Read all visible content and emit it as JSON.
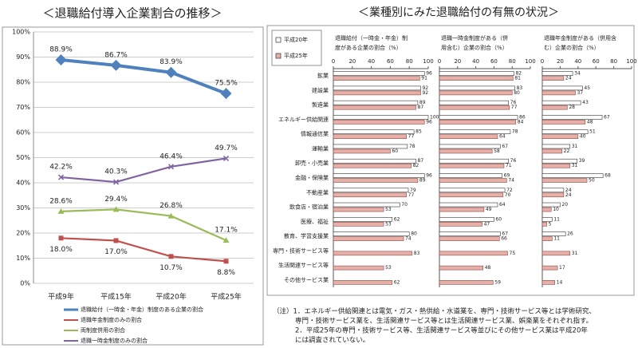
{
  "chart_data": [
    {
      "type": "line",
      "title": "＜退職給付導入企業割合の推移＞",
      "categories": [
        "平成9年",
        "平成15年",
        "平成20年",
        "平成25年"
      ],
      "ylim": [
        0,
        100
      ],
      "yticks": [
        {
          "value": 0,
          "label": "0%"
        },
        {
          "value": 10,
          "label": "10%"
        },
        {
          "value": 20,
          "label": "20%"
        },
        {
          "value": 30,
          "label": "30%"
        },
        {
          "value": 40,
          "label": "40%"
        },
        {
          "value": 50,
          "label": "50%"
        },
        {
          "value": 60,
          "label": "60%"
        },
        {
          "value": 70,
          "label": "70%"
        },
        {
          "value": 80,
          "label": "80%"
        },
        {
          "value": 90,
          "label": "90%"
        },
        {
          "value": 100,
          "label": "100%"
        }
      ],
      "grid": true,
      "series": [
        {
          "name": "退職給付（一時金・年金）制度のある企業の割合",
          "color": "#4f81bd",
          "values": [
            88.9,
            86.7,
            83.9,
            75.5
          ],
          "value_labels": [
            "88.9%",
            "86.7%",
            "83.9%",
            "75.5%"
          ]
        },
        {
          "name": "退職年金制度のみの割合",
          "color": "#c0504d",
          "values": [
            18.0,
            17.0,
            10.7,
            8.8
          ],
          "value_labels": [
            "18.0%",
            "17.0%",
            "10.7%",
            "8.8%"
          ]
        },
        {
          "name": "両制度併用の割合",
          "color": "#9bbb59",
          "values": [
            28.6,
            29.4,
            26.8,
            17.1
          ],
          "value_labels": [
            "28.6%",
            "29.4%",
            "26.8%",
            "17.1%"
          ]
        },
        {
          "name": "退職一時金制度のみの割合",
          "color": "#8064a2",
          "values": [
            42.2,
            40.3,
            46.4,
            49.7
          ],
          "value_labels": [
            "42.2%",
            "40.3%",
            "46.4%",
            "49.7%"
          ]
        }
      ]
    },
    {
      "type": "barh",
      "title": "＜業種別にみた退職給付の有無の状況＞",
      "categories": [
        "鉱業",
        "建設業",
        "製造業",
        "エネルギー供給関連",
        "情報通信業",
        "運輸業",
        "卸売・小売業",
        "金融・保険業",
        "不動産業",
        "飲食店・宿泊業",
        "医療、福祉",
        "教育、学習支援業",
        "専門・技術サービス等",
        "生活関連サービス等",
        "その他サービス業"
      ],
      "xlim": [
        0,
        100
      ],
      "xticks": [
        0,
        20,
        40,
        60,
        80,
        100
      ],
      "legend": [
        {
          "name": "平成20年",
          "color": "#ffffff"
        },
        {
          "name": "平成25年",
          "color": "#e6b0a8"
        }
      ],
      "panels": [
        {
          "subtitle": [
            "退職給付（一時金・年金）制",
            "度がある企業の割合（%）"
          ],
          "series": [
            {
              "values": [
                96,
                92,
                89,
                100,
                85,
                78,
                87,
                96,
                79,
                70,
                62,
                80,
                null,
                null,
                null
              ]
            },
            {
              "values": [
                91,
                92,
                87,
                96,
                77,
                60,
                82,
                89,
                77,
                53,
                53,
                74,
                83,
                53,
                62
              ]
            }
          ]
        },
        {
          "subtitle": [
            "退職一時金制度がある（併",
            "用含む）企業の割合（%）"
          ],
          "series": [
            {
              "values": [
                82,
                83,
                76,
                86,
                78,
                67,
                76,
                69,
                72,
                64,
                60,
                67,
                null,
                null,
                null
              ]
            },
            {
              "values": [
                81,
                80,
                77,
                84,
                64,
                58,
                71,
                74,
                70,
                49,
                47,
                66,
                75,
                48,
                59
              ]
            }
          ]
        },
        {
          "subtitle": [
            "退職年金制度がある（併用含",
            "む）企業の割合（%）"
          ],
          "series": [
            {
              "values": [
                34,
                45,
                43,
                67,
                51,
                31,
                39,
                68,
                24,
                20,
                11,
                26,
                null,
                null,
                null
              ]
            },
            {
              "values": [
                24,
                37,
                28,
                48,
                40,
                22,
                31,
                50,
                24,
                10,
                5,
                11,
                31,
                17,
                14
              ]
            }
          ]
        }
      ],
      "notes": [
        "（注）1．エネルギー供給関連とは電気・ガス・熱供給・水道業を、専門・技術サービス等とは学術研究、",
        "専門・技術サービス業を、生活関連サービス等とは生活関連サービス業、娯楽業をそれぞれ指す。",
        "2．平成25年の専門・技術サービス等、生活関連サービス等並びにその他サービス業は平成20年",
        "には調査されていない。"
      ]
    }
  ]
}
